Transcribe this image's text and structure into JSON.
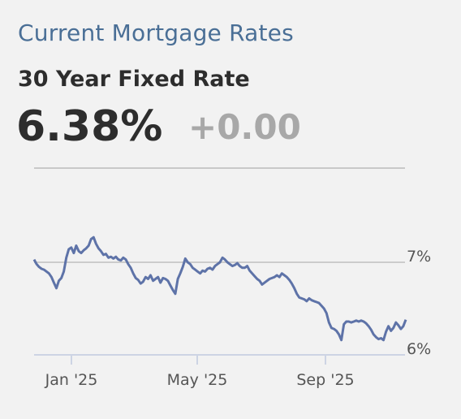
{
  "header": {
    "title": "Current Mortgage Rates",
    "subtitle": "30 Year Fixed Rate",
    "rate": "6.38%",
    "change": "+0.00"
  },
  "colors": {
    "title": "#4a6f96",
    "line": "#5e73a8",
    "change": "#a8a8a8"
  },
  "chart_data": {
    "type": "line",
    "title": "",
    "xlabel": "",
    "ylabel": "",
    "ylim": [
      5.95,
      7.55
    ],
    "x_tick_labels": [
      "Jan '25",
      "May '25",
      "Sep '25"
    ],
    "y_tick_labels": [
      "7%",
      "6%"
    ],
    "y_ticks": [
      7,
      6
    ],
    "grid": true,
    "series": [
      {
        "values": [
          7.03,
          6.98,
          6.95,
          6.93,
          6.92,
          6.9,
          6.88,
          6.84,
          6.78,
          6.72,
          6.8,
          6.83,
          6.9,
          7.05,
          7.14,
          7.16,
          7.1,
          7.18,
          7.12,
          7.1,
          7.13,
          7.15,
          7.18,
          7.25,
          7.27,
          7.2,
          7.15,
          7.12,
          7.08,
          7.09,
          7.05,
          7.06,
          7.04,
          7.06,
          7.03,
          7.02,
          7.05,
          7.03,
          6.98,
          6.94,
          6.88,
          6.83,
          6.81,
          6.77,
          6.79,
          6.84,
          6.82,
          6.86,
          6.8,
          6.82,
          6.84,
          6.78,
          6.83,
          6.82,
          6.8,
          6.75,
          6.7,
          6.66,
          6.82,
          6.88,
          6.95,
          7.04,
          7.0,
          6.98,
          6.94,
          6.92,
          6.9,
          6.88,
          6.91,
          6.9,
          6.93,
          6.94,
          6.92,
          6.96,
          6.98,
          7.0,
          7.05,
          7.03,
          7.0,
          6.98,
          6.96,
          6.97,
          6.99,
          6.96,
          6.94,
          6.94,
          6.96,
          6.91,
          6.88,
          6.85,
          6.82,
          6.8,
          6.76,
          6.78,
          6.8,
          6.82,
          6.83,
          6.84,
          6.86,
          6.84,
          6.88,
          6.86,
          6.84,
          6.81,
          6.77,
          6.72,
          6.66,
          6.62,
          6.61,
          6.6,
          6.58,
          6.61,
          6.59,
          6.58,
          6.57,
          6.56,
          6.53,
          6.5,
          6.45,
          6.35,
          6.29,
          6.28,
          6.26,
          6.22,
          6.16,
          6.33,
          6.36,
          6.36,
          6.35,
          6.36,
          6.37,
          6.36,
          6.37,
          6.36,
          6.34,
          6.31,
          6.27,
          6.22,
          6.19,
          6.17,
          6.18,
          6.16,
          6.25,
          6.31,
          6.26,
          6.29,
          6.35,
          6.32,
          6.28,
          6.31,
          6.38
        ]
      }
    ]
  }
}
